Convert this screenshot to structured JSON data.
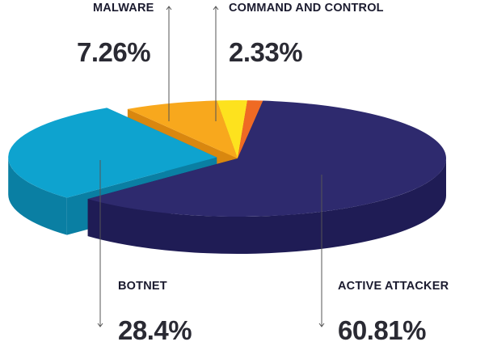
{
  "chart_data": {
    "type": "pie",
    "title": "",
    "slices": [
      {
        "label": "ACTIVE ATTACKER",
        "value": 60.81,
        "value_label": "60.81%",
        "color": "#2e2a6e",
        "side_color": "#1f1c55"
      },
      {
        "label": "BOTNET",
        "value": 28.4,
        "value_label": "28.4%",
        "color": "#0ea3cf",
        "side_color": "#0a7fa3"
      },
      {
        "label": "MALWARE",
        "value": 7.26,
        "value_label": "7.26%",
        "color": "#f8a81d",
        "side_color": "#d9870f"
      },
      {
        "label": "COMMAND AND CONTROL",
        "value": 2.33,
        "value_label": "2.33%",
        "color": "#fde21e",
        "side_color": "#d4b90c"
      },
      {
        "label": "",
        "value": 1.2,
        "value_label": "",
        "color": "#ef6a23",
        "side_color": "#c54f12"
      }
    ]
  }
}
